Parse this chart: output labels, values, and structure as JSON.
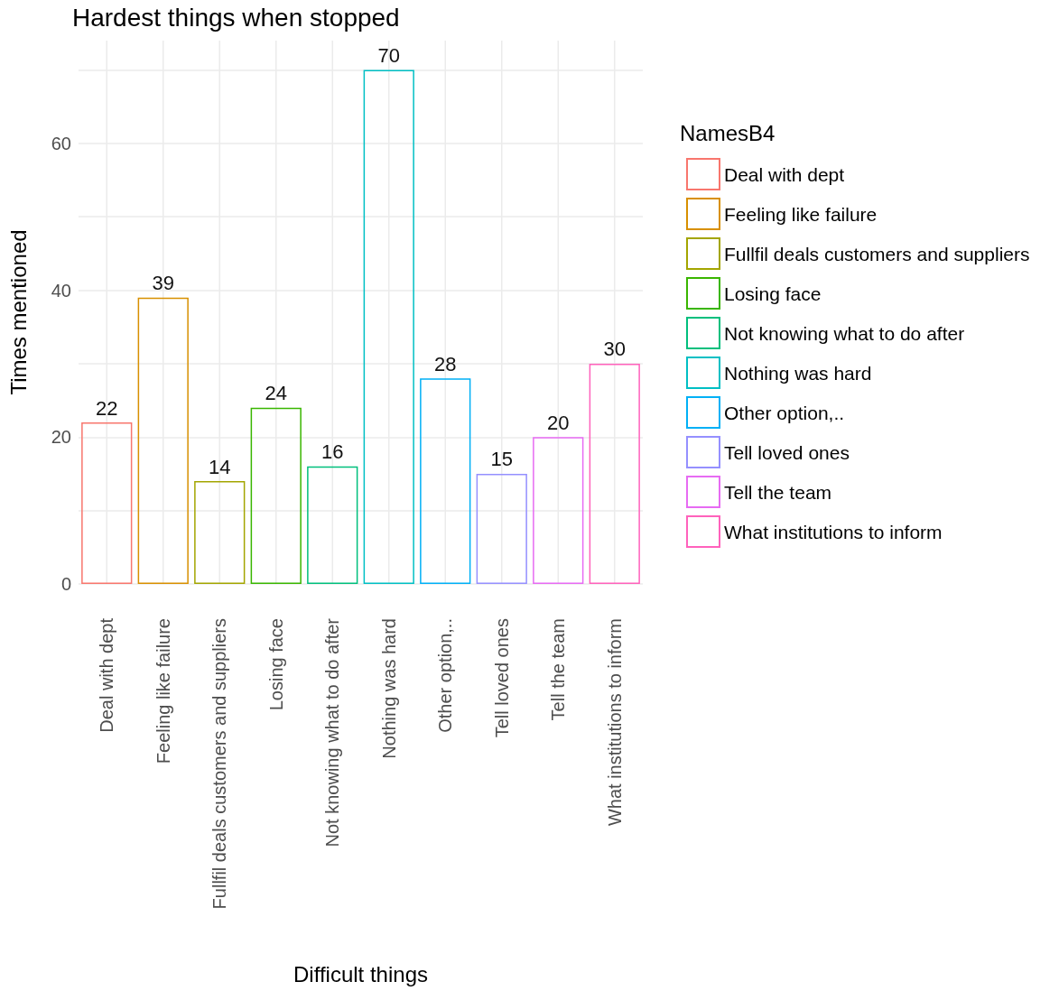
{
  "chart_data": {
    "type": "bar",
    "title": "Hardest things when stopped",
    "xlabel": "Difficult things",
    "ylabel": "Times mentioned",
    "legend_title": "NamesB4",
    "categories": [
      "Deal with dept",
      "Feeling like failure",
      "Fullfil deals customers and suppliers",
      "Losing face",
      "Not knowing what to do after",
      "Nothing was hard",
      "Other option,..",
      "Tell loved ones",
      "Tell the team",
      "What institutions to inform"
    ],
    "series": [
      {
        "name": "Deal with dept",
        "color": "#f8766d",
        "values": [
          22,
          null,
          null,
          null,
          null,
          null,
          null,
          null,
          null,
          null
        ]
      },
      {
        "name": "Feeling like failure",
        "color": "#d89000",
        "values": [
          null,
          39,
          null,
          null,
          null,
          null,
          null,
          null,
          null,
          null
        ]
      },
      {
        "name": "Fullfil deals customers and suppliers",
        "color": "#a3a500",
        "values": [
          null,
          null,
          14,
          null,
          null,
          null,
          null,
          null,
          null,
          null
        ]
      },
      {
        "name": "Losing face",
        "color": "#39b600",
        "values": [
          null,
          null,
          null,
          24,
          null,
          null,
          null,
          null,
          null,
          null
        ]
      },
      {
        "name": "Not knowing what to do after",
        "color": "#00bf7d",
        "values": [
          null,
          null,
          null,
          null,
          16,
          null,
          null,
          null,
          null,
          null
        ]
      },
      {
        "name": "Nothing was hard",
        "color": "#00bfc4",
        "values": [
          null,
          null,
          null,
          null,
          null,
          70,
          null,
          null,
          null,
          null
        ]
      },
      {
        "name": "Other option,..",
        "color": "#00b0f6",
        "values": [
          null,
          null,
          null,
          null,
          null,
          null,
          28,
          null,
          null,
          null
        ]
      },
      {
        "name": "Tell loved ones",
        "color": "#9590ff",
        "values": [
          null,
          null,
          null,
          null,
          null,
          null,
          null,
          15,
          null,
          null
        ]
      },
      {
        "name": "Tell the team",
        "color": "#e76bf3",
        "values": [
          null,
          null,
          null,
          null,
          null,
          null,
          null,
          null,
          20,
          null
        ]
      },
      {
        "name": "What institutions to inform",
        "color": "#ff62bc",
        "values": [
          null,
          null,
          null,
          null,
          null,
          null,
          null,
          null,
          null,
          30
        ]
      }
    ],
    "ylim": [
      0,
      74
    ],
    "yticks": [
      0,
      {
        "value": 10,
        "label": null
      },
      20,
      {
        "value": 30,
        "label": null
      },
      40,
      {
        "value": 50,
        "label": null
      },
      60,
      {
        "value": 70,
        "label": null
      }
    ],
    "grid": true,
    "legend": "right",
    "data_labels": true
  }
}
